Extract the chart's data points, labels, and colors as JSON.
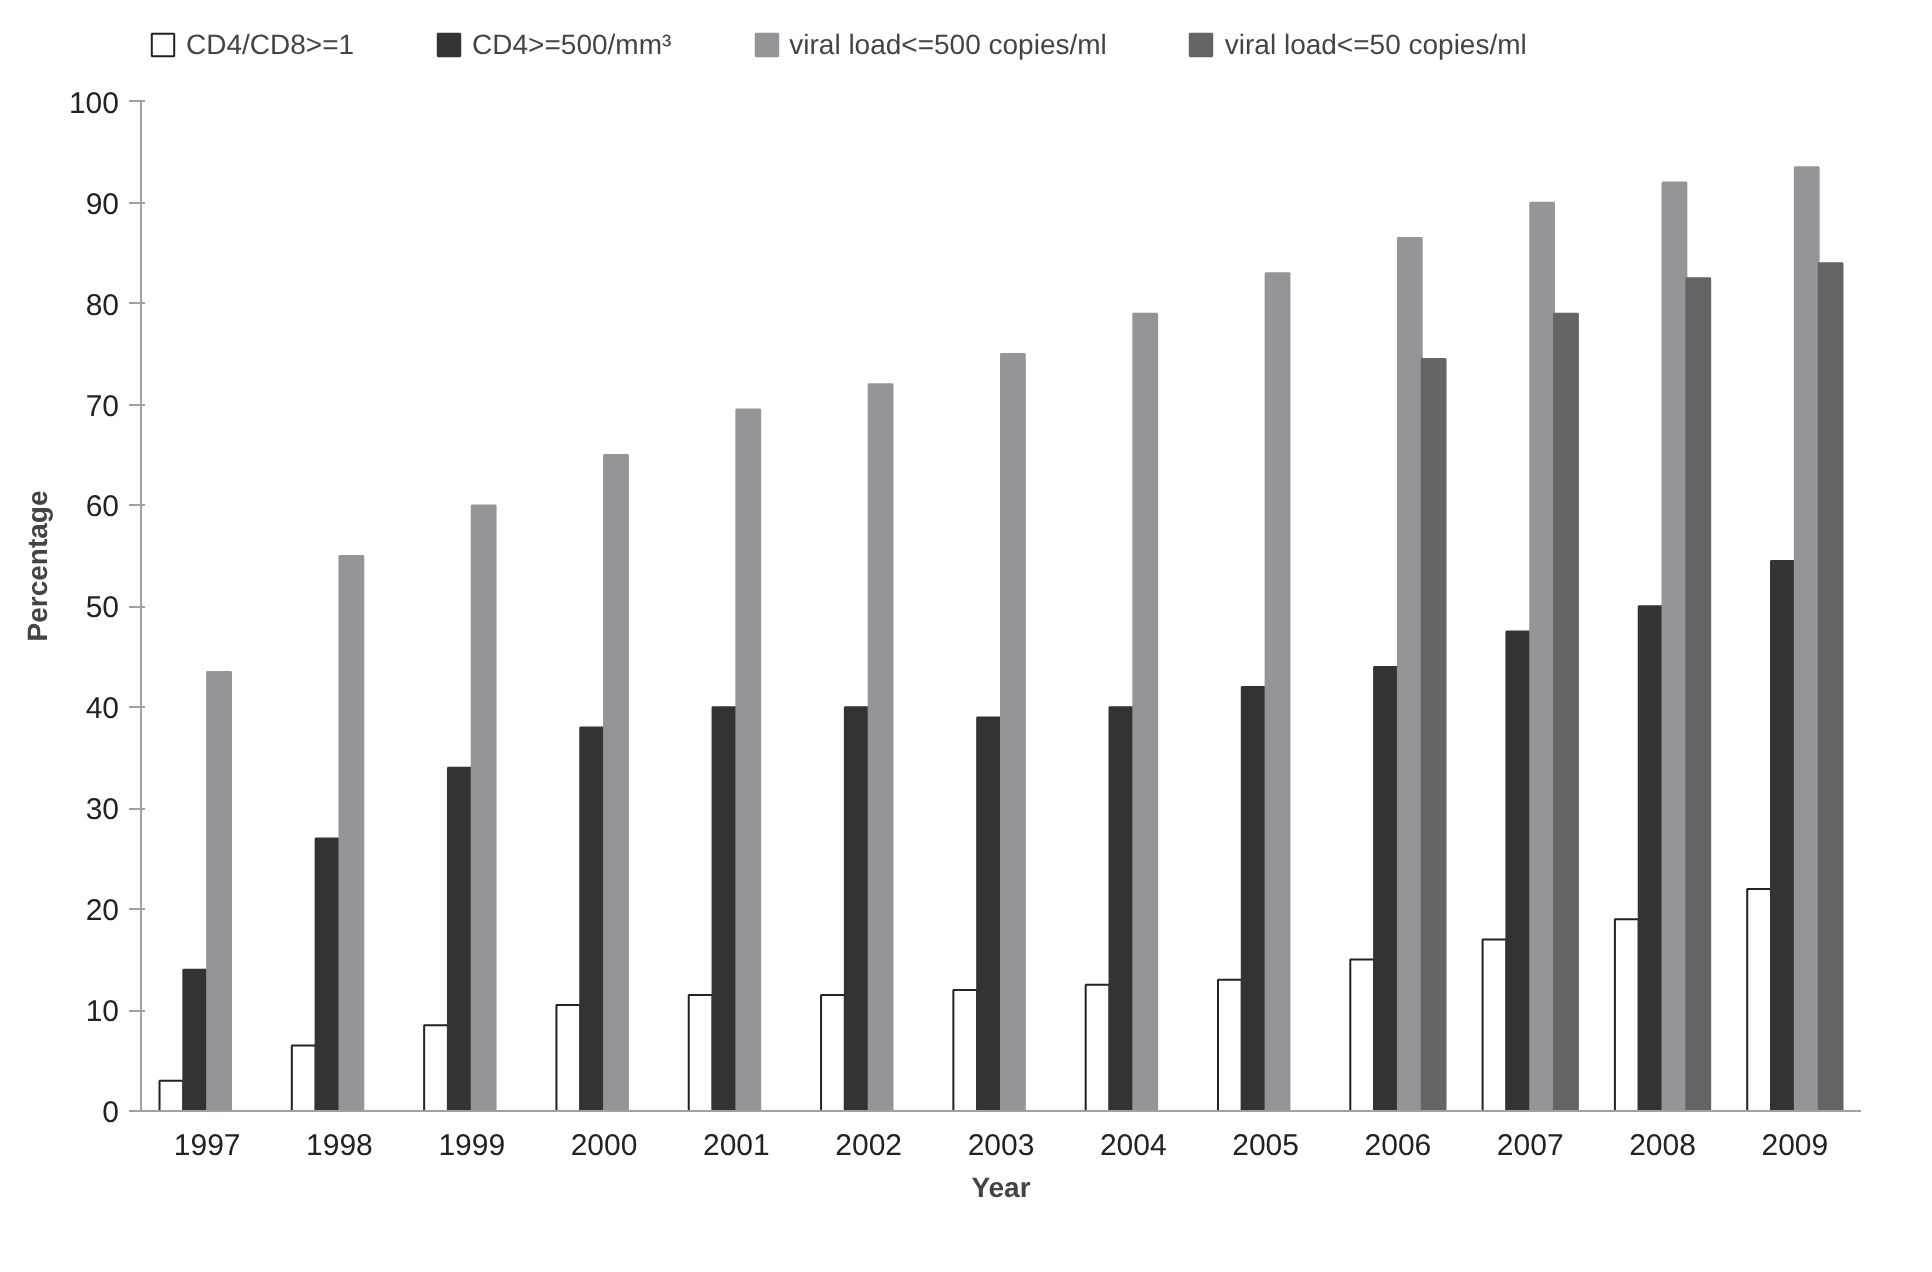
{
  "chart_data": {
    "type": "bar",
    "xlabel": "Year",
    "ylabel": "Percentage",
    "categories": [
      "1997",
      "1998",
      "1999",
      "2000",
      "2001",
      "2002",
      "2003",
      "2004",
      "2005",
      "2006",
      "2007",
      "2008",
      "2009"
    ],
    "series": [
      {
        "name": "CD4/CD8>=1",
        "color": "#ffffff",
        "values": [
          3,
          6.5,
          8.5,
          10.5,
          11.5,
          11.5,
          12,
          12.5,
          13,
          15,
          17,
          19,
          22
        ]
      },
      {
        "name": "CD4>=500/mm³",
        "color": "#333333",
        "values": [
          14,
          27,
          34,
          38,
          40,
          40,
          39,
          40,
          42,
          44,
          47.5,
          50,
          54.5
        ]
      },
      {
        "name": "viral load<=500 copies/ml",
        "color": "#939598",
        "values": [
          43.5,
          55,
          60,
          65,
          69.5,
          72,
          75,
          79,
          83,
          86.5,
          90,
          92,
          93.5
        ]
      },
      {
        "name": "viral load<=50 copies/ml",
        "color": "#636466",
        "values": [
          null,
          null,
          null,
          null,
          null,
          null,
          null,
          null,
          null,
          74.5,
          79,
          82.5,
          84
        ]
      }
    ],
    "ylim": [
      0,
      100
    ],
    "yticks": [
      0,
      10,
      20,
      30,
      40,
      50,
      60,
      70,
      80,
      90,
      100
    ],
    "grid": false,
    "legend": "top"
  }
}
